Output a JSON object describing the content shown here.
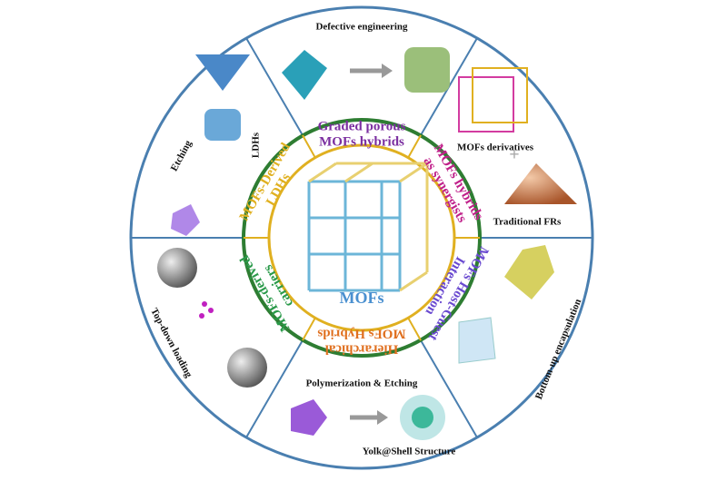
{
  "center": {
    "label": "MOFs"
  },
  "inner_segments": [
    {
      "lines": [
        "Graded porous",
        "MOFs hybrids"
      ]
    },
    {
      "lines": [
        "MOFs hybrids",
        "as synergists"
      ]
    },
    {
      "lines": [
        "MOFs Host-Guest",
        "Interaction"
      ]
    },
    {
      "lines": [
        "Hierarchical",
        "MOFs Hybrids"
      ]
    },
    {
      "lines": [
        "MOFs-derived",
        "carriers"
      ]
    },
    {
      "lines": [
        "MOFs-Derived",
        "LDHs"
      ]
    }
  ],
  "outer_sectors": [
    {
      "labels": [
        "Defective engineering"
      ]
    },
    {
      "labels": [
        "MOFs derivatives",
        "Traditional FRs"
      ]
    },
    {
      "labels": [
        "Bottom-up encapsulation"
      ]
    },
    {
      "labels": [
        "Polymerization & Etching",
        "Yolk@Shell Structure"
      ]
    },
    {
      "labels": [
        "Top-down loading"
      ]
    },
    {
      "labels": [
        "Etching",
        "LDHs"
      ]
    }
  ]
}
